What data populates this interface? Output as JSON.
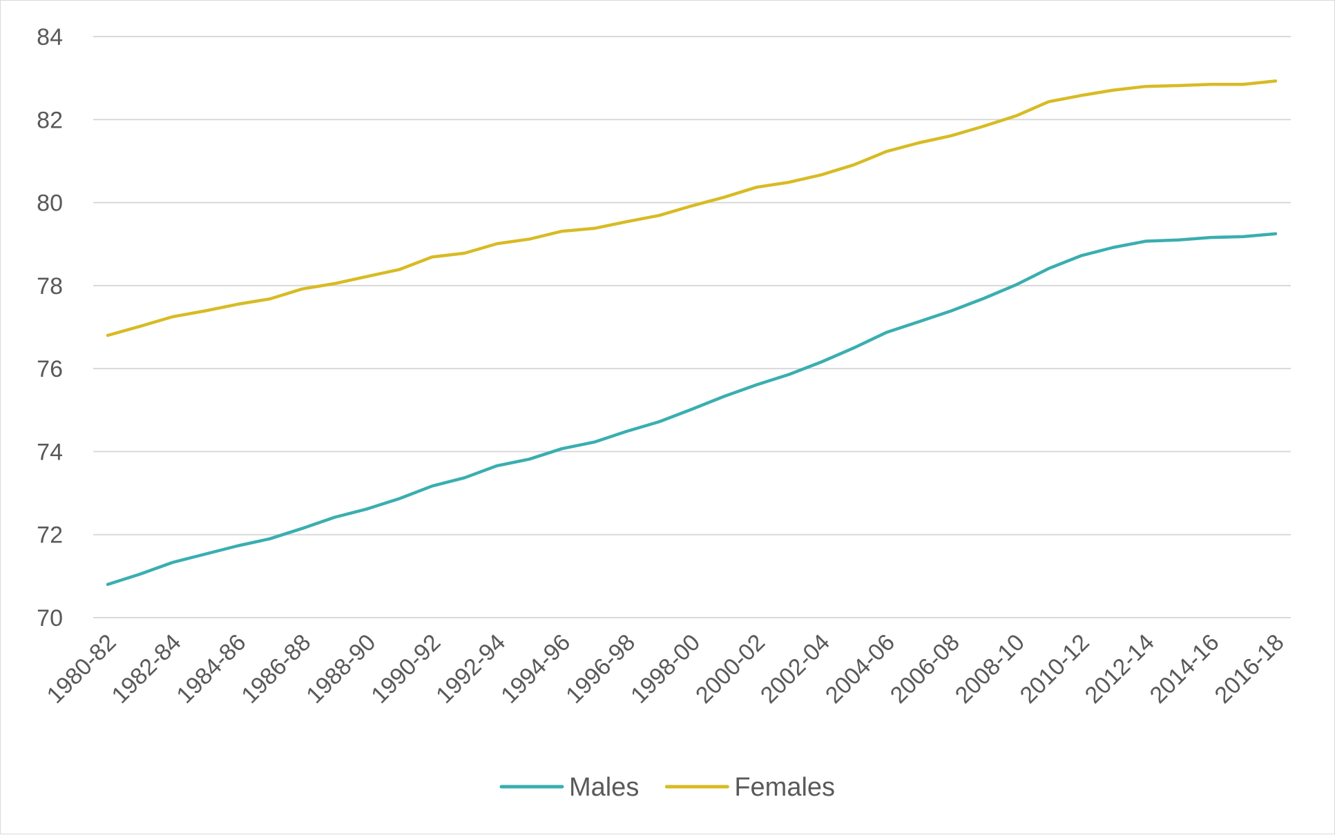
{
  "chart_data": {
    "type": "line",
    "title": "",
    "xlabel": "",
    "ylabel": "",
    "ylim": [
      70,
      84
    ],
    "yticks": [
      70,
      72,
      74,
      76,
      78,
      80,
      82,
      84
    ],
    "grid": true,
    "legend_position": "bottom",
    "x": [
      "1980-82",
      "1981-83",
      "1982-84",
      "1983-85",
      "1984-86",
      "1985-87",
      "1986-88",
      "1987-89",
      "1988-90",
      "1989-91",
      "1990-92",
      "1991-93",
      "1992-94",
      "1993-95",
      "1994-96",
      "1995-97",
      "1996-98",
      "1997-99",
      "1998-00",
      "1999-01",
      "2000-02",
      "2001-03",
      "2002-04",
      "2003-05",
      "2004-06",
      "2005-07",
      "2006-08",
      "2007-09",
      "2008-10",
      "2009-11",
      "2010-12",
      "2011-13",
      "2012-14",
      "2013-15",
      "2014-16",
      "2015-17",
      "2016-18"
    ],
    "x_tick_labels": [
      "1980-82",
      "1982-84",
      "1984-86",
      "1986-88",
      "1988-90",
      "1990-92",
      "1992-94",
      "1994-96",
      "1996-98",
      "1998-00",
      "2000-02",
      "2002-04",
      "2004-06",
      "2006-08",
      "2008-10",
      "2010-12",
      "2012-14",
      "2014-16",
      "2016-18"
    ],
    "series": [
      {
        "name": "Males",
        "color": "#3aaeb0",
        "values": [
          70.8,
          71.05,
          71.33,
          71.53,
          71.73,
          71.9,
          72.15,
          72.42,
          72.62,
          72.87,
          73.17,
          73.37,
          73.66,
          73.82,
          74.07,
          74.23,
          74.49,
          74.72,
          75.02,
          75.33,
          75.61,
          75.86,
          76.16,
          76.5,
          76.87,
          77.13,
          77.39,
          77.69,
          78.02,
          78.41,
          78.72,
          78.92,
          79.07,
          79.1,
          79.16,
          79.18,
          79.25
        ]
      },
      {
        "name": "Females",
        "color": "#d8bb24",
        "values": [
          76.8,
          77.02,
          77.25,
          77.39,
          77.55,
          77.68,
          77.92,
          78.05,
          78.22,
          78.39,
          78.69,
          78.78,
          79.01,
          79.12,
          79.31,
          79.38,
          79.54,
          79.69,
          79.92,
          80.13,
          80.37,
          80.49,
          80.67,
          80.91,
          81.23,
          81.44,
          81.61,
          81.84,
          82.09,
          82.43,
          82.58,
          82.71,
          82.8,
          82.82,
          82.85,
          82.85,
          82.93
        ]
      }
    ]
  }
}
